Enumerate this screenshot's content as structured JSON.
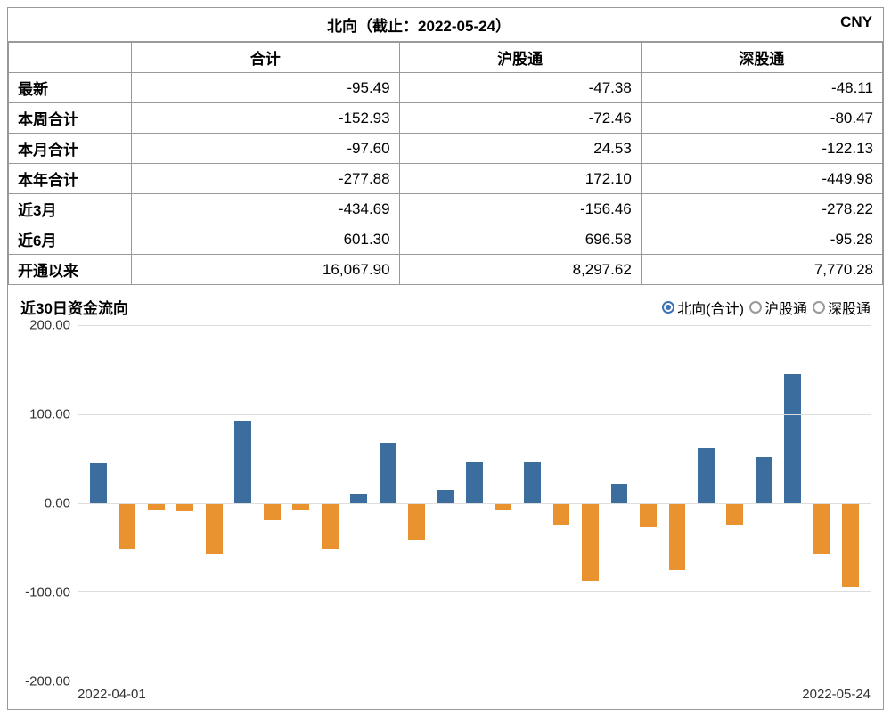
{
  "header": {
    "title": "北向（截止：2022-05-24）",
    "currency": "CNY"
  },
  "table": {
    "columns": [
      "",
      "合计",
      "沪股通",
      "深股通"
    ],
    "rows": [
      {
        "label": "最新",
        "values": [
          "-95.49",
          "-47.38",
          "-48.11"
        ]
      },
      {
        "label": "本周合计",
        "values": [
          "-152.93",
          "-72.46",
          "-80.47"
        ]
      },
      {
        "label": "本月合计",
        "values": [
          "-97.60",
          "24.53",
          "-122.13"
        ]
      },
      {
        "label": "本年合计",
        "values": [
          "-277.88",
          "172.10",
          "-449.98"
        ]
      },
      {
        "label": "近3月",
        "values": [
          "-434.69",
          "-156.46",
          "-278.22"
        ]
      },
      {
        "label": "近6月",
        "values": [
          "601.30",
          "696.58",
          "-95.28"
        ]
      },
      {
        "label": "开通以来",
        "values": [
          "16,067.90",
          "8,297.62",
          "7,770.28"
        ]
      }
    ]
  },
  "chart": {
    "title": "近30日资金流向",
    "legend": [
      {
        "label": "北向(合计)",
        "selected": true
      },
      {
        "label": "沪股通",
        "selected": false
      },
      {
        "label": "深股通",
        "selected": false
      }
    ],
    "type": "bar",
    "ylim": [
      -200,
      200
    ],
    "yticks": [
      -200,
      -100,
      0,
      100,
      200
    ],
    "ytick_labels": [
      "-200.00",
      "-100.00",
      "0.00",
      "100.00",
      "200.00"
    ],
    "grid_color": "#dddddd",
    "axis_color": "#999999",
    "background_color": "#ffffff",
    "positive_color": "#3b6e9f",
    "negative_color": "#e8932f",
    "bar_width_ratio": 0.58,
    "values": [
      45,
      -52,
      -8,
      -10,
      -58,
      92,
      -20,
      -8,
      -52,
      10,
      68,
      -42,
      15,
      46,
      -8,
      46,
      -25,
      -88,
      22,
      -28,
      -76,
      62,
      -25,
      52,
      145,
      -58,
      -95
    ],
    "x_start_label": "2022-04-01",
    "x_end_label": "2022-05-24",
    "label_fontsize": 15
  }
}
